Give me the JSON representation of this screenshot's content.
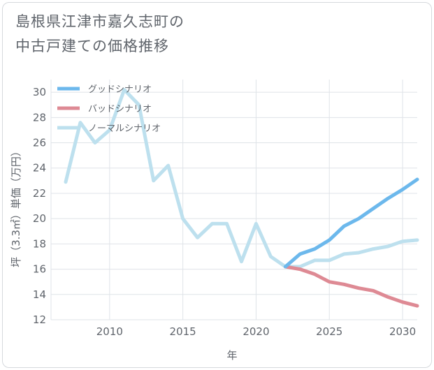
{
  "chart_data": {
    "type": "line",
    "title_lines": [
      "島根県江津市嘉久志町の",
      "中古戸建ての価格推移"
    ],
    "xlabel": "年",
    "ylabel": "坪（3.3㎡）単価（万円）",
    "xlim": [
      2006,
      2031
    ],
    "ylim": [
      12,
      31
    ],
    "x_ticks": [
      2010,
      2015,
      2020,
      2025,
      2030
    ],
    "y_ticks": [
      12,
      14,
      16,
      18,
      20,
      22,
      24,
      26,
      28,
      30
    ],
    "grid": true,
    "legend_position": "top-left",
    "series": [
      {
        "name": "グッドシナリオ",
        "color": "#6cb8ec",
        "x": [
          2022,
          2023,
          2024,
          2025,
          2026,
          2027,
          2028,
          2029,
          2030,
          2031
        ],
        "values": [
          16.2,
          17.2,
          17.6,
          18.3,
          19.4,
          20.0,
          20.8,
          21.6,
          22.3,
          23.1
        ]
      },
      {
        "name": "バッドシナリオ",
        "color": "#de8a94",
        "x": [
          2022,
          2023,
          2024,
          2025,
          2026,
          2027,
          2028,
          2029,
          2030,
          2031
        ],
        "values": [
          16.2,
          16.0,
          15.6,
          15.0,
          14.8,
          14.5,
          14.3,
          13.8,
          13.4,
          13.1
        ]
      },
      {
        "name": "ノーマルシナリオ",
        "color": "#bde0ee",
        "x": [
          2007,
          2008,
          2009,
          2010,
          2011,
          2012,
          2013,
          2014,
          2015,
          2016,
          2017,
          2018,
          2019,
          2020,
          2021,
          2022,
          2023,
          2024,
          2025,
          2026,
          2027,
          2028,
          2029,
          2030,
          2031
        ],
        "values": [
          22.9,
          27.6,
          26.0,
          27.0,
          30.2,
          29.0,
          23.0,
          24.2,
          20.0,
          18.5,
          19.6,
          19.6,
          16.6,
          19.6,
          17.0,
          16.2,
          16.2,
          16.7,
          16.7,
          17.2,
          17.3,
          17.6,
          17.8,
          18.2,
          18.3
        ]
      }
    ]
  }
}
